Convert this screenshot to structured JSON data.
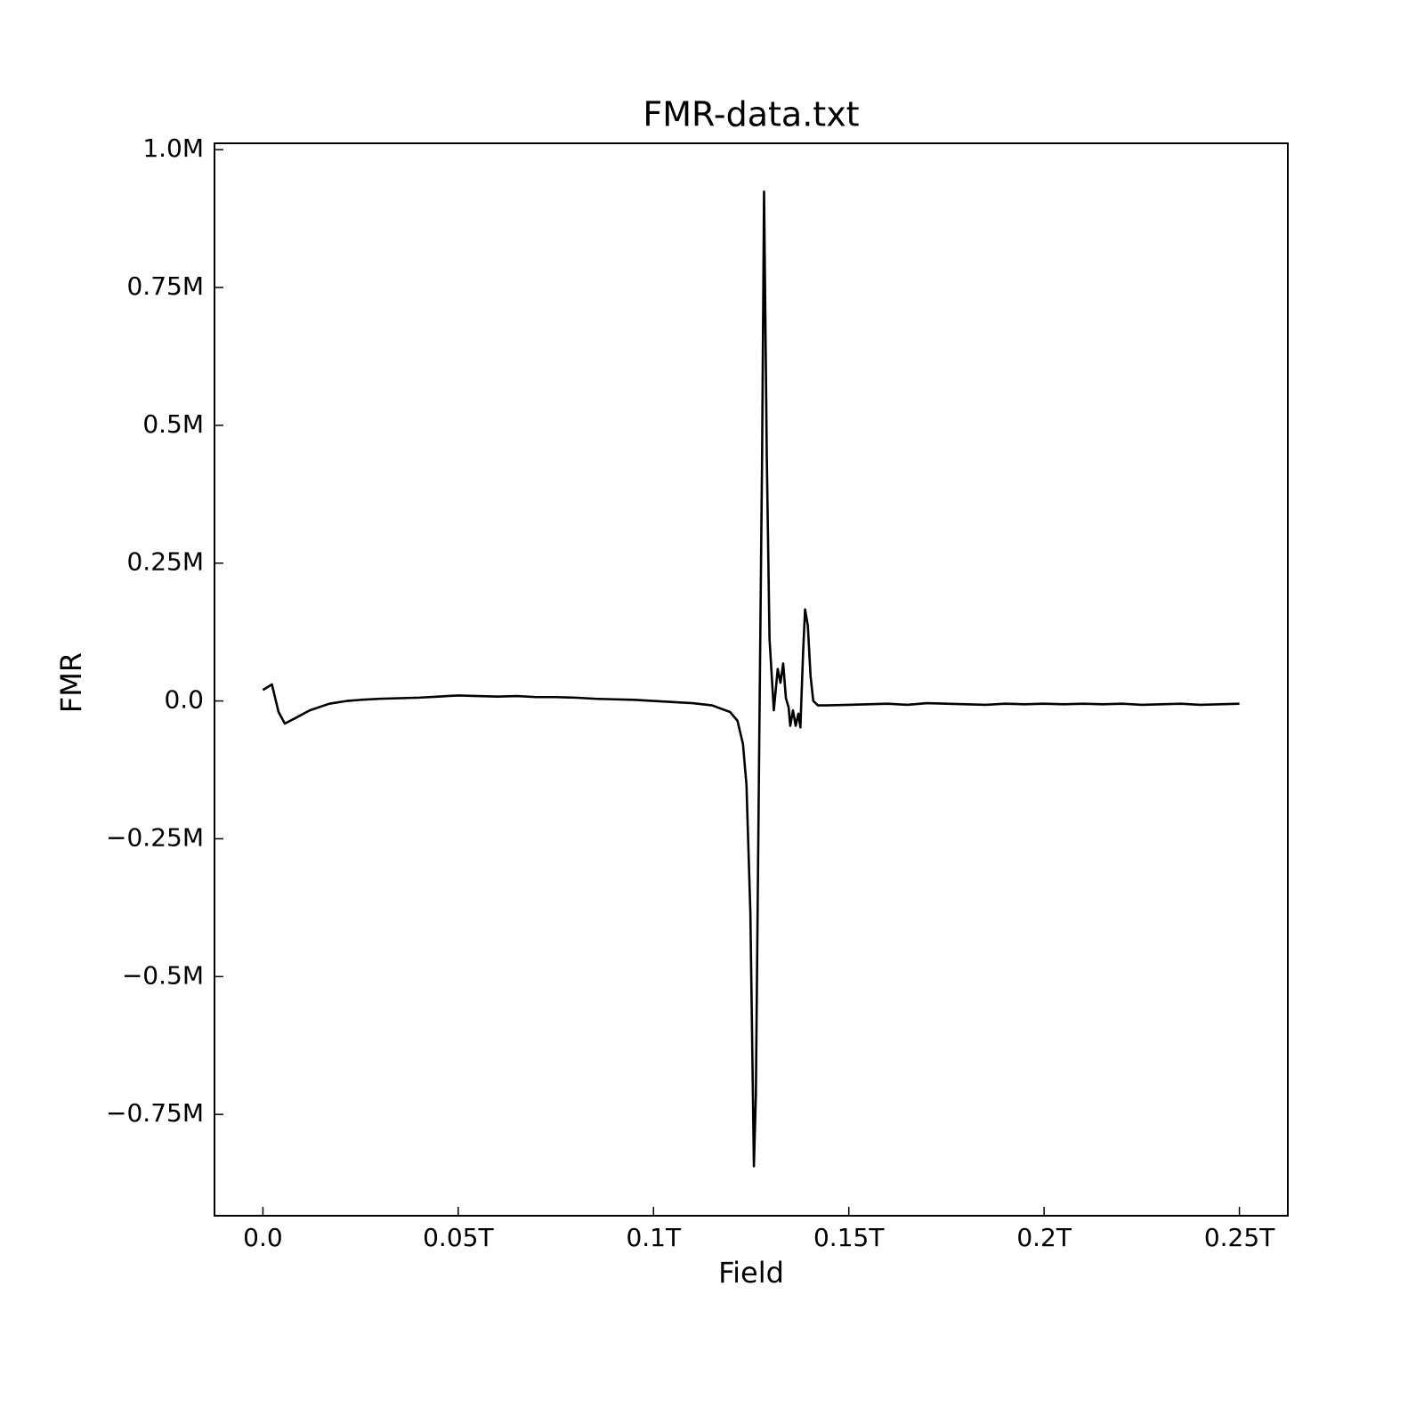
{
  "chart_data": {
    "type": "line",
    "title": "FMR-data.txt",
    "x_label": "Field",
    "y_label": "FMR",
    "color": "#000000",
    "x": [
      0,
      0.0023,
      0.004,
      0.0056,
      0.0086,
      0.012,
      0.017,
      0.0215,
      0.025,
      0.03,
      0.035,
      0.04,
      0.045,
      0.05,
      0.055,
      0.06,
      0.065,
      0.07,
      0.075,
      0.08,
      0.085,
      0.09,
      0.095,
      0.1,
      0.105,
      0.11,
      0.115,
      0.1196,
      0.1215,
      0.1229,
      0.1238,
      0.1248,
      0.1257,
      0.1262,
      0.1271,
      0.1278,
      0.1283,
      0.129,
      0.1297,
      0.1308,
      0.1318,
      0.1325,
      0.1332,
      0.1339,
      0.1346,
      0.135,
      0.1357,
      0.1364,
      0.1371,
      0.1376,
      0.1383,
      0.1388,
      0.1395,
      0.1402,
      0.1409,
      0.1421,
      0.1442,
      0.15,
      0.155,
      0.16,
      0.165,
      0.17,
      0.175,
      0.18,
      0.185,
      0.19,
      0.195,
      0.2,
      0.205,
      0.21,
      0.215,
      0.22,
      0.225,
      0.23,
      0.235,
      0.24,
      0.245,
      0.25
    ],
    "values": [
      20000,
      30000,
      -20000,
      -41000,
      -30000,
      -17000,
      -5000,
      0,
      2000,
      4000,
      5000,
      6000,
      8000,
      10000,
      9000,
      8000,
      9000,
      7000,
      7000,
      6000,
      4000,
      3000,
      2000,
      0,
      -2000,
      -4000,
      -8000,
      -20000,
      -36000,
      -78000,
      -152000,
      -384000,
      -844000,
      -715000,
      -53000,
      444000,
      924000,
      444000,
      113000,
      -17000,
      58000,
      33000,
      68000,
      5000,
      -12000,
      -45000,
      -17000,
      -45000,
      -23000,
      -48000,
      88000,
      166000,
      137000,
      46000,
      0,
      -8000,
      -8000,
      -7000,
      -6000,
      -5000,
      -7000,
      -4000,
      -5000,
      -6000,
      -7000,
      -5000,
      -6000,
      -5000,
      -6000,
      -5000,
      -6000,
      -5000,
      -7000,
      -6000,
      -5000,
      -7000,
      -6000,
      -5000
    ],
    "xlim": [
      -0.0124,
      0.2624
    ],
    "ylim": [
      -933800,
      1011600
    ],
    "xticks": [
      {
        "value": 0,
        "label": "0.0"
      },
      {
        "value": 0.05,
        "label": "0.05T"
      },
      {
        "value": 0.1,
        "label": "0.1T"
      },
      {
        "value": 0.15,
        "label": "0.15T"
      },
      {
        "value": 0.2,
        "label": "0.2T"
      },
      {
        "value": 0.25,
        "label": "0.25T"
      }
    ],
    "yticks": [
      {
        "value": -750000,
        "label": "−0.75M"
      },
      {
        "value": -500000,
        "label": "−0.5M"
      },
      {
        "value": -250000,
        "label": "−0.25M"
      },
      {
        "value": 0,
        "label": "0.0"
      },
      {
        "value": 250000,
        "label": "0.25M"
      },
      {
        "value": 500000,
        "label": "0.5M"
      },
      {
        "value": 750000,
        "label": "0.75M"
      },
      {
        "value": 1000000,
        "label": "1.0M"
      }
    ]
  }
}
